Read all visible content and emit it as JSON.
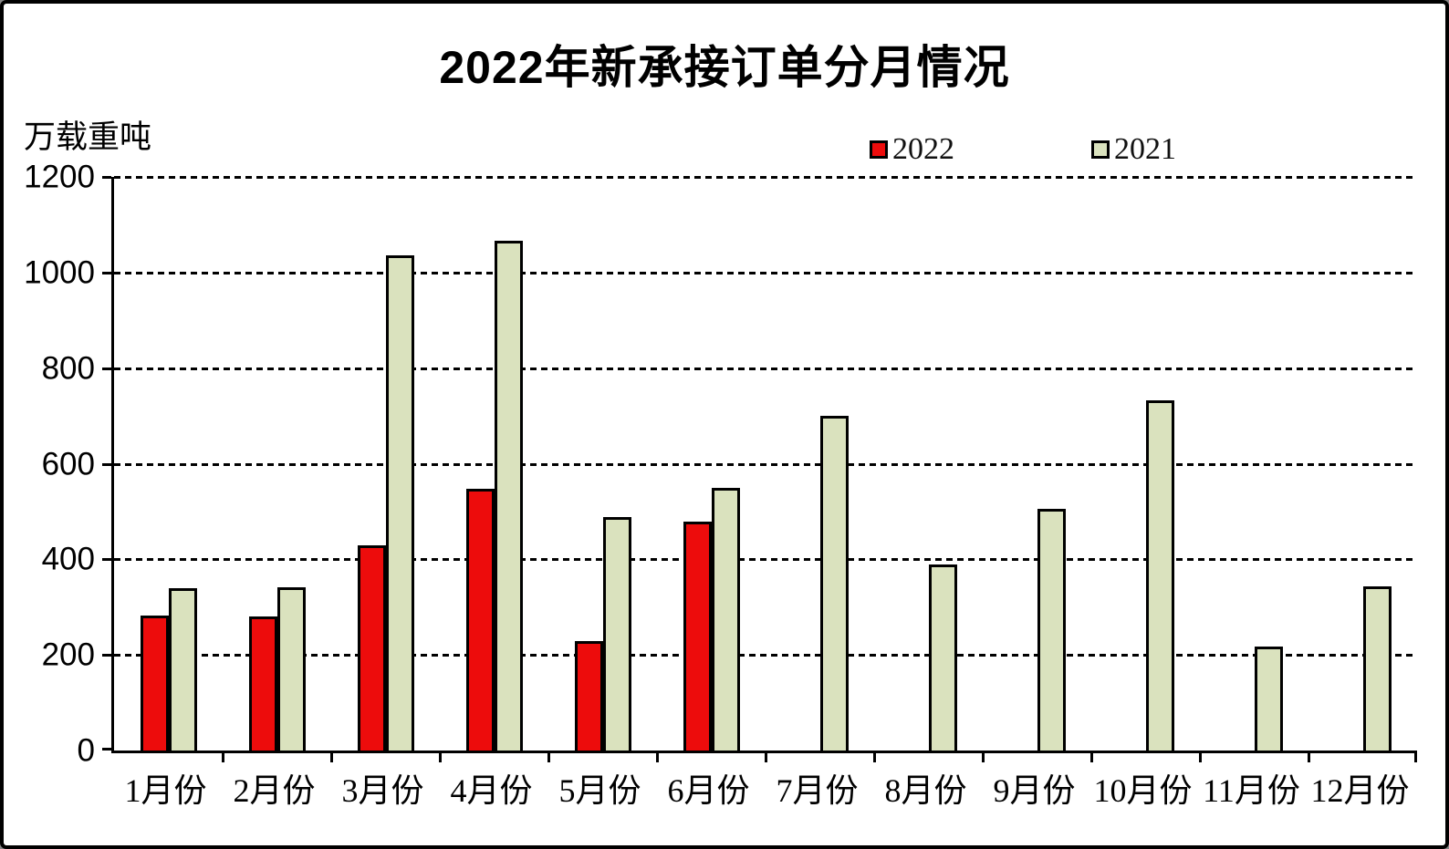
{
  "page": {
    "background": "#ffffff",
    "frame_border_color": "#000000"
  },
  "chart_data": {
    "type": "bar",
    "title": "2022年新承接订单分月情况",
    "ylabel": "万载重吨",
    "xlabel": "",
    "categories": [
      "1月份",
      "2月份",
      "3月份",
      "4月份",
      "5月份",
      "6月份",
      "7月份",
      "8月份",
      "9月份",
      "10月份",
      "11月份",
      "12月份"
    ],
    "series": [
      {
        "name": "2022",
        "color": "#ed0c0c",
        "values": [
          282,
          281,
          430,
          547,
          228,
          478,
          null,
          null,
          null,
          null,
          null,
          null
        ]
      },
      {
        "name": "2021",
        "color": "#dae2be",
        "values": [
          339,
          342,
          1035,
          1066,
          488,
          549,
          700,
          390,
          505,
          732,
          217,
          343
        ]
      }
    ],
    "ylim": [
      0,
      1200
    ],
    "yticks": [
      0,
      200,
      400,
      600,
      800,
      1000,
      1200
    ],
    "grid": "horizontal-dashed",
    "legend_position": "top-right",
    "bar_border_color": "#000000"
  }
}
